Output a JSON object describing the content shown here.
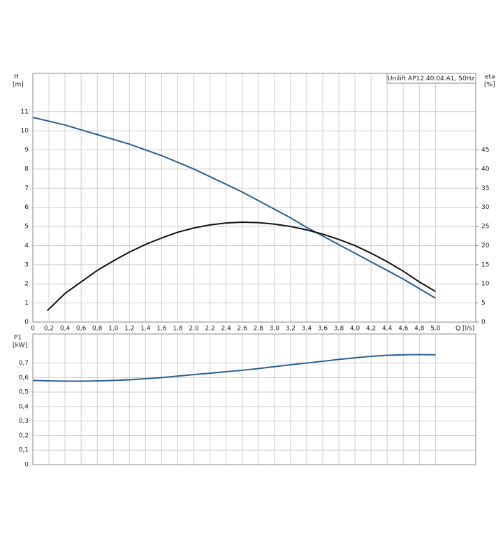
{
  "chart_data": [
    {
      "type": "line",
      "annotation": "Unilift AP12.40.04.A1, 50Hz",
      "ylabel": "H",
      "yunit": "[m]",
      "y2label": "eta",
      "y2unit": "[%]",
      "xlabel": "Q [l/s]",
      "xlim": [
        0,
        5.5
      ],
      "ylim": [
        0,
        13
      ],
      "y2lim": [
        0,
        65
      ],
      "grid": true,
      "xticks": [
        0,
        {
          "value": 0.2,
          "label": "0,2"
        },
        {
          "value": 0.4,
          "label": "0,4"
        },
        {
          "value": 0.6,
          "label": "0,6"
        },
        {
          "value": 0.8,
          "label": "0,8"
        },
        {
          "value": 1.0,
          "label": "1,0"
        },
        {
          "value": 1.2,
          "label": "1,2"
        },
        {
          "value": 1.4,
          "label": "1,4"
        },
        {
          "value": 1.6,
          "label": "1,6"
        },
        {
          "value": 1.8,
          "label": "1,8"
        },
        {
          "value": 2.0,
          "label": "2,0"
        },
        {
          "value": 2.2,
          "label": "2,2"
        },
        {
          "value": 2.4,
          "label": "2,4"
        },
        {
          "value": 2.6,
          "label": "2,6"
        },
        {
          "value": 2.8,
          "label": "2,8"
        },
        {
          "value": 3.0,
          "label": "3,0"
        },
        {
          "value": 3.2,
          "label": "3,2"
        },
        {
          "value": 3.4,
          "label": "3,4"
        },
        {
          "value": 3.6,
          "label": "3,6"
        },
        {
          "value": 3.8,
          "label": "3,8"
        },
        {
          "value": 4.0,
          "label": "4,0"
        },
        {
          "value": 4.2,
          "label": "4,2"
        },
        {
          "value": 4.4,
          "label": "4,4"
        },
        {
          "value": 4.6,
          "label": "4,6"
        },
        {
          "value": 4.8,
          "label": "4,8"
        },
        {
          "value": 5.0,
          "label": "5,0"
        }
      ],
      "yticks": [
        0,
        1,
        2,
        3,
        4,
        5,
        6,
        7,
        8,
        9,
        10,
        11
      ],
      "y2ticks": [
        0,
        5,
        10,
        15,
        20,
        25,
        30,
        35,
        40,
        45
      ],
      "series": [
        {
          "color": "#2b5f8e",
          "x": [
            0,
            0.2,
            0.4,
            0.6,
            0.8,
            1.0,
            1.2,
            1.4,
            1.6,
            1.8,
            2.0,
            2.2,
            2.4,
            2.6,
            2.8,
            3.0,
            3.2,
            3.4,
            3.6,
            3.8,
            4.0,
            4.2,
            4.4,
            4.6,
            4.8,
            5.0
          ],
          "values": [
            10.7,
            10.5,
            10.3,
            10.05,
            9.8,
            9.55,
            9.3,
            9.0,
            8.7,
            8.35,
            8.0,
            7.6,
            7.2,
            6.8,
            6.35,
            5.9,
            5.45,
            4.95,
            4.5,
            4.05,
            3.6,
            3.15,
            2.7,
            2.25,
            1.75,
            1.25
          ]
        },
        {
          "color": "#111111",
          "axis": "y2",
          "x": [
            0.18,
            0.4,
            0.6,
            0.8,
            1.0,
            1.2,
            1.4,
            1.6,
            1.8,
            2.0,
            2.2,
            2.4,
            2.6,
            2.8,
            3.0,
            3.2,
            3.4,
            3.6,
            3.8,
            4.0,
            4.2,
            4.4,
            4.6,
            4.8,
            5.0
          ],
          "values": [
            3,
            7.5,
            10.5,
            13.5,
            16,
            18.3,
            20.3,
            22,
            23.5,
            24.6,
            25.4,
            25.9,
            26.1,
            26,
            25.6,
            25,
            24.1,
            23,
            21.6,
            20,
            18,
            15.8,
            13.3,
            10.5,
            8
          ]
        }
      ]
    },
    {
      "type": "line",
      "ylabel": "P1",
      "yunit": "[kW]",
      "xlim": [
        0,
        5.5
      ],
      "ylim": [
        0,
        0.9
      ],
      "grid": true,
      "yticks": [
        0,
        {
          "value": 0.1,
          "label": "0,1"
        },
        {
          "value": 0.2,
          "label": "0,2"
        },
        {
          "value": 0.3,
          "label": "0,3"
        },
        {
          "value": 0.4,
          "label": "0,4"
        },
        {
          "value": 0.5,
          "label": "0,5"
        },
        {
          "value": 0.6,
          "label": "0,6"
        },
        {
          "value": 0.7,
          "label": "0,7"
        }
      ],
      "series": [
        {
          "color": "#2b5f8e",
          "x": [
            0,
            0.2,
            0.4,
            0.6,
            0.8,
            1.0,
            1.2,
            1.4,
            1.6,
            1.8,
            2.0,
            2.2,
            2.4,
            2.6,
            2.8,
            3.0,
            3.2,
            3.4,
            3.6,
            3.8,
            4.0,
            4.2,
            4.4,
            4.6,
            4.8,
            5.0
          ],
          "values": [
            0.58,
            0.577,
            0.575,
            0.575,
            0.577,
            0.58,
            0.585,
            0.592,
            0.6,
            0.61,
            0.62,
            0.63,
            0.64,
            0.65,
            0.662,
            0.675,
            0.688,
            0.7,
            0.712,
            0.725,
            0.736,
            0.746,
            0.753,
            0.757,
            0.758,
            0.757
          ]
        }
      ]
    }
  ]
}
